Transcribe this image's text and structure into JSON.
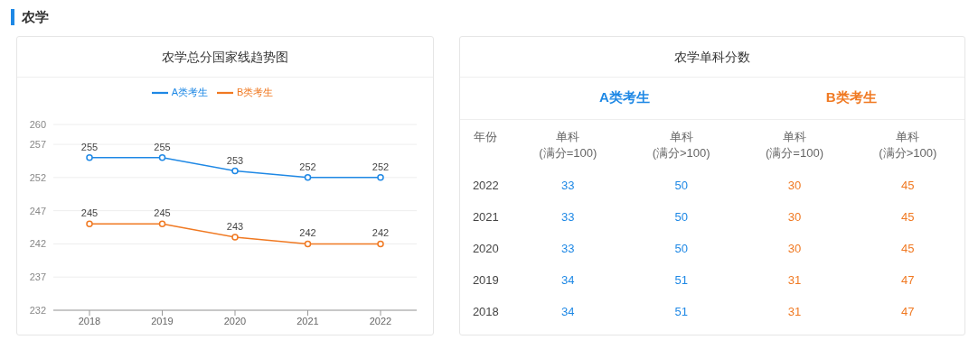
{
  "chart_data": [
    {
      "type": "line",
      "title": "农学总分国家线趋势图",
      "annotations": [
        "农学"
      ],
      "categories": [
        "2018",
        "2019",
        "2020",
        "2021",
        "2022"
      ],
      "series": [
        {
          "name": "A类考生",
          "color": "#1e88e5",
          "values": [
            255,
            255,
            253,
            252,
            252
          ]
        },
        {
          "name": "B类考生",
          "color": "#f07922",
          "values": [
            245,
            245,
            243,
            242,
            242
          ]
        }
      ],
      "ylim": [
        232,
        260
      ],
      "yticks": [
        232,
        237,
        242,
        247,
        252,
        257,
        260
      ],
      "grid": "y",
      "legend": "top",
      "marker": "circle",
      "line_style": "solid",
      "data_labels": true
    },
    {
      "type": "heatmap",
      "title": "农学单科分数",
      "annotations": [
        "A类考生",
        "B类考生"
      ],
      "ylabel": "年份",
      "data_labels": true,
      "categories": [
        "单科\n(满分=100)",
        "单科\n(满分>100)",
        "单科\n(满分=100)",
        "单科\n(满分>100)"
      ],
      "y_categories": [
        "2022",
        "2021",
        "2020",
        "2019",
        "2018"
      ],
      "colors": [
        "#1e88e5",
        "#1e88e5",
        "#f07922",
        "#f07922"
      ],
      "cells": [
        [
          33,
          50,
          30,
          45
        ],
        [
          33,
          50,
          30,
          45
        ],
        [
          33,
          50,
          30,
          45
        ],
        [
          34,
          51,
          31,
          47
        ],
        [
          34,
          51,
          31,
          47
        ]
      ]
    }
  ]
}
